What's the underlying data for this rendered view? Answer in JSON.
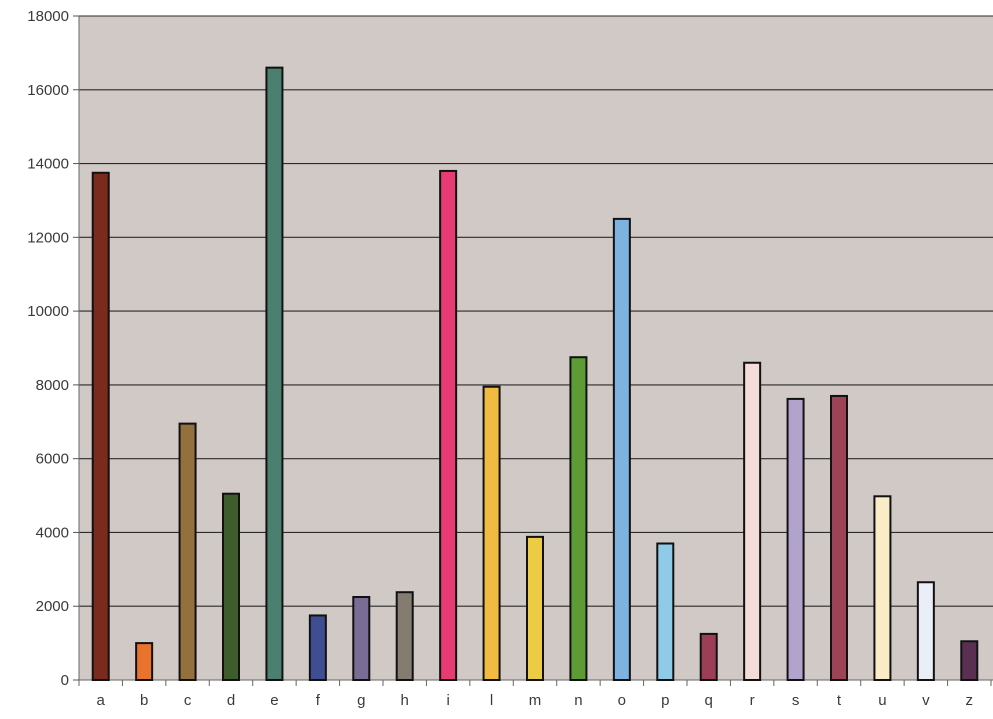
{
  "chart_data": {
    "type": "bar",
    "title": "",
    "xlabel": "",
    "ylabel": "",
    "ylim": [
      0,
      18000
    ],
    "yticks": [
      0,
      2000,
      4000,
      6000,
      8000,
      10000,
      12000,
      14000,
      16000,
      18000
    ],
    "grid": true,
    "legend": "none",
    "plot_background": "#d1c9c5",
    "categories": [
      "a",
      "b",
      "c",
      "d",
      "e",
      "f",
      "g",
      "h",
      "i",
      "l",
      "m",
      "n",
      "o",
      "p",
      "q",
      "r",
      "s",
      "t",
      "u",
      "v",
      "z"
    ],
    "values": [
      13750,
      1000,
      6950,
      5050,
      16600,
      1750,
      2250,
      2380,
      13800,
      7950,
      3880,
      8750,
      12500,
      3700,
      1250,
      8600,
      7620,
      7700,
      4980,
      2650,
      1050
    ],
    "colors": [
      "#7b2a1e",
      "#e9722d",
      "#94703f",
      "#3f5d2c",
      "#4b7f70",
      "#3f4d92",
      "#7a6d95",
      "#847c70",
      "#e83a73",
      "#f1bb41",
      "#eccb45",
      "#5d9c35",
      "#7db2e1",
      "#8fcbe7",
      "#9a3f55",
      "#f4dcd8",
      "#b2a3cd",
      "#9c4355",
      "#fbecc8",
      "#eaeef6",
      "#5a3052"
    ]
  }
}
